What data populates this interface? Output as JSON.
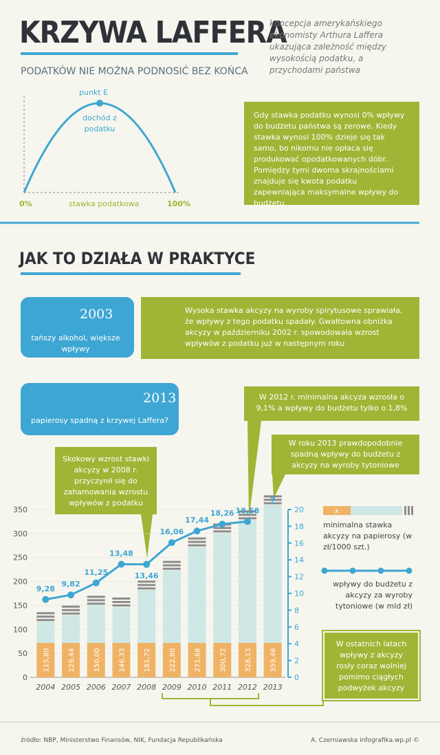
{
  "header": {
    "title": "KRZYWA LAFFERA",
    "subtitle": "PODATKÓW NIE MOŻNA PODNOSIĆ BEZ KOŃCA",
    "description": "koncepcja amerykańskiego ekonomisty Arthura Laffera ukazująca zależność między wysokością podatku, a przychodami państwa"
  },
  "curve": {
    "peak": "punkt E",
    "peak_caption": "dochód z podatku",
    "x_start": "0%",
    "x_label": "stawka podatkowa",
    "x_end": "100%",
    "note": "Gdy stawka podatku wynosi 0% wpływy do budżetu państwa są zerowe. Kiedy stawka wynosi 100% dzieje się tak samo, bo nikomu nie opłaca się produkować opodatkowanych dóbr. Pomiędzy tymi dwoma skrajnościami znajduje się kwota podatku zapewniająca maksymalne wpływy do budżetu"
  },
  "section": {
    "title": "JAK TO DZIAŁA W PRAKTYCE"
  },
  "cases": [
    {
      "year": "2003",
      "caption": "tańszy alkohol, większe wpływy",
      "text": "Wysoka stawka akcyzy na wyroby spirytusowe sprawiała, że wpływy z tego podatku spadały. Gwałtowna obniżka akcyzy w październiku 2002 r. spowodowała wzrost wpływów z podatku już w następnym roku"
    },
    {
      "year": "2013",
      "caption": "papierosy spadną z krzywej Laffera?"
    }
  ],
  "callouts": [
    "W 2012 r. minimalna akcyza wzrosła o 9,1% a wpływy do budżetu tylko o 1,8%",
    "W roku 2013 prawdopodobnie spadną wpływy do budżetu z akcyzy na wyroby tytoniowe",
    "Skokowy wzrost stawki akcyzy w 2008 r. przyczynił się do zahamowania wzrostu wpływów z podatku",
    "W ostatnich latach wpływy z akcyzy rosły coraz wolniej pomimo ciągłych podwyżek akcyzy"
  ],
  "chart_data": {
    "type": "bar",
    "categories": [
      "2004",
      "2005",
      "2006",
      "2007",
      "2008",
      "2009",
      "2010",
      "2011",
      "2012",
      "2013"
    ],
    "series": [
      {
        "name": "minimalna stawka akcyzy na papierosy (w zł/1000 szt.)",
        "type": "bar",
        "color": "#cfe7e5",
        "values": [
          115.8,
          129.44,
          150.0,
          146.33,
          181.72,
          222.8,
          271.68,
          300.72,
          328.13,
          359.46
        ],
        "value_labels": [
          "115,80",
          "129,44",
          "150,00",
          "146,33",
          "181,72",
          "222,80",
          "271,68",
          "300,72",
          "328,13",
          "359,46"
        ]
      },
      {
        "name": "wpływy do budżetu z akcyzy za wyroby tytoniowe (w mld zł)",
        "type": "line",
        "axis": "y2",
        "color": "#3ea6d3",
        "values": [
          9.28,
          9.82,
          11.25,
          13.48,
          13.46,
          16.06,
          17.44,
          18.26,
          18.58,
          null
        ],
        "value_labels": [
          "9,28",
          "9,82",
          "11,25",
          "13,48",
          "13,46",
          "16,06",
          "17,44",
          "18,26",
          "18,58",
          null
        ]
      }
    ],
    "ylim": [
      0,
      350
    ],
    "yticks": [
      0,
      50,
      100,
      150,
      200,
      250,
      300,
      350
    ],
    "y2lim": [
      0,
      20
    ],
    "y2ticks": [
      0,
      2,
      4,
      6,
      8,
      10,
      12,
      14,
      16,
      18,
      20
    ],
    "grid": true,
    "annotation": "?",
    "legend_symbol": "x"
  },
  "footer": {
    "source": "źródło: NBP, Ministerstwo Finansów, NIK, Fundacja Republikańska",
    "credit": "A. Czerniawska infografika.wp.pl ©"
  }
}
